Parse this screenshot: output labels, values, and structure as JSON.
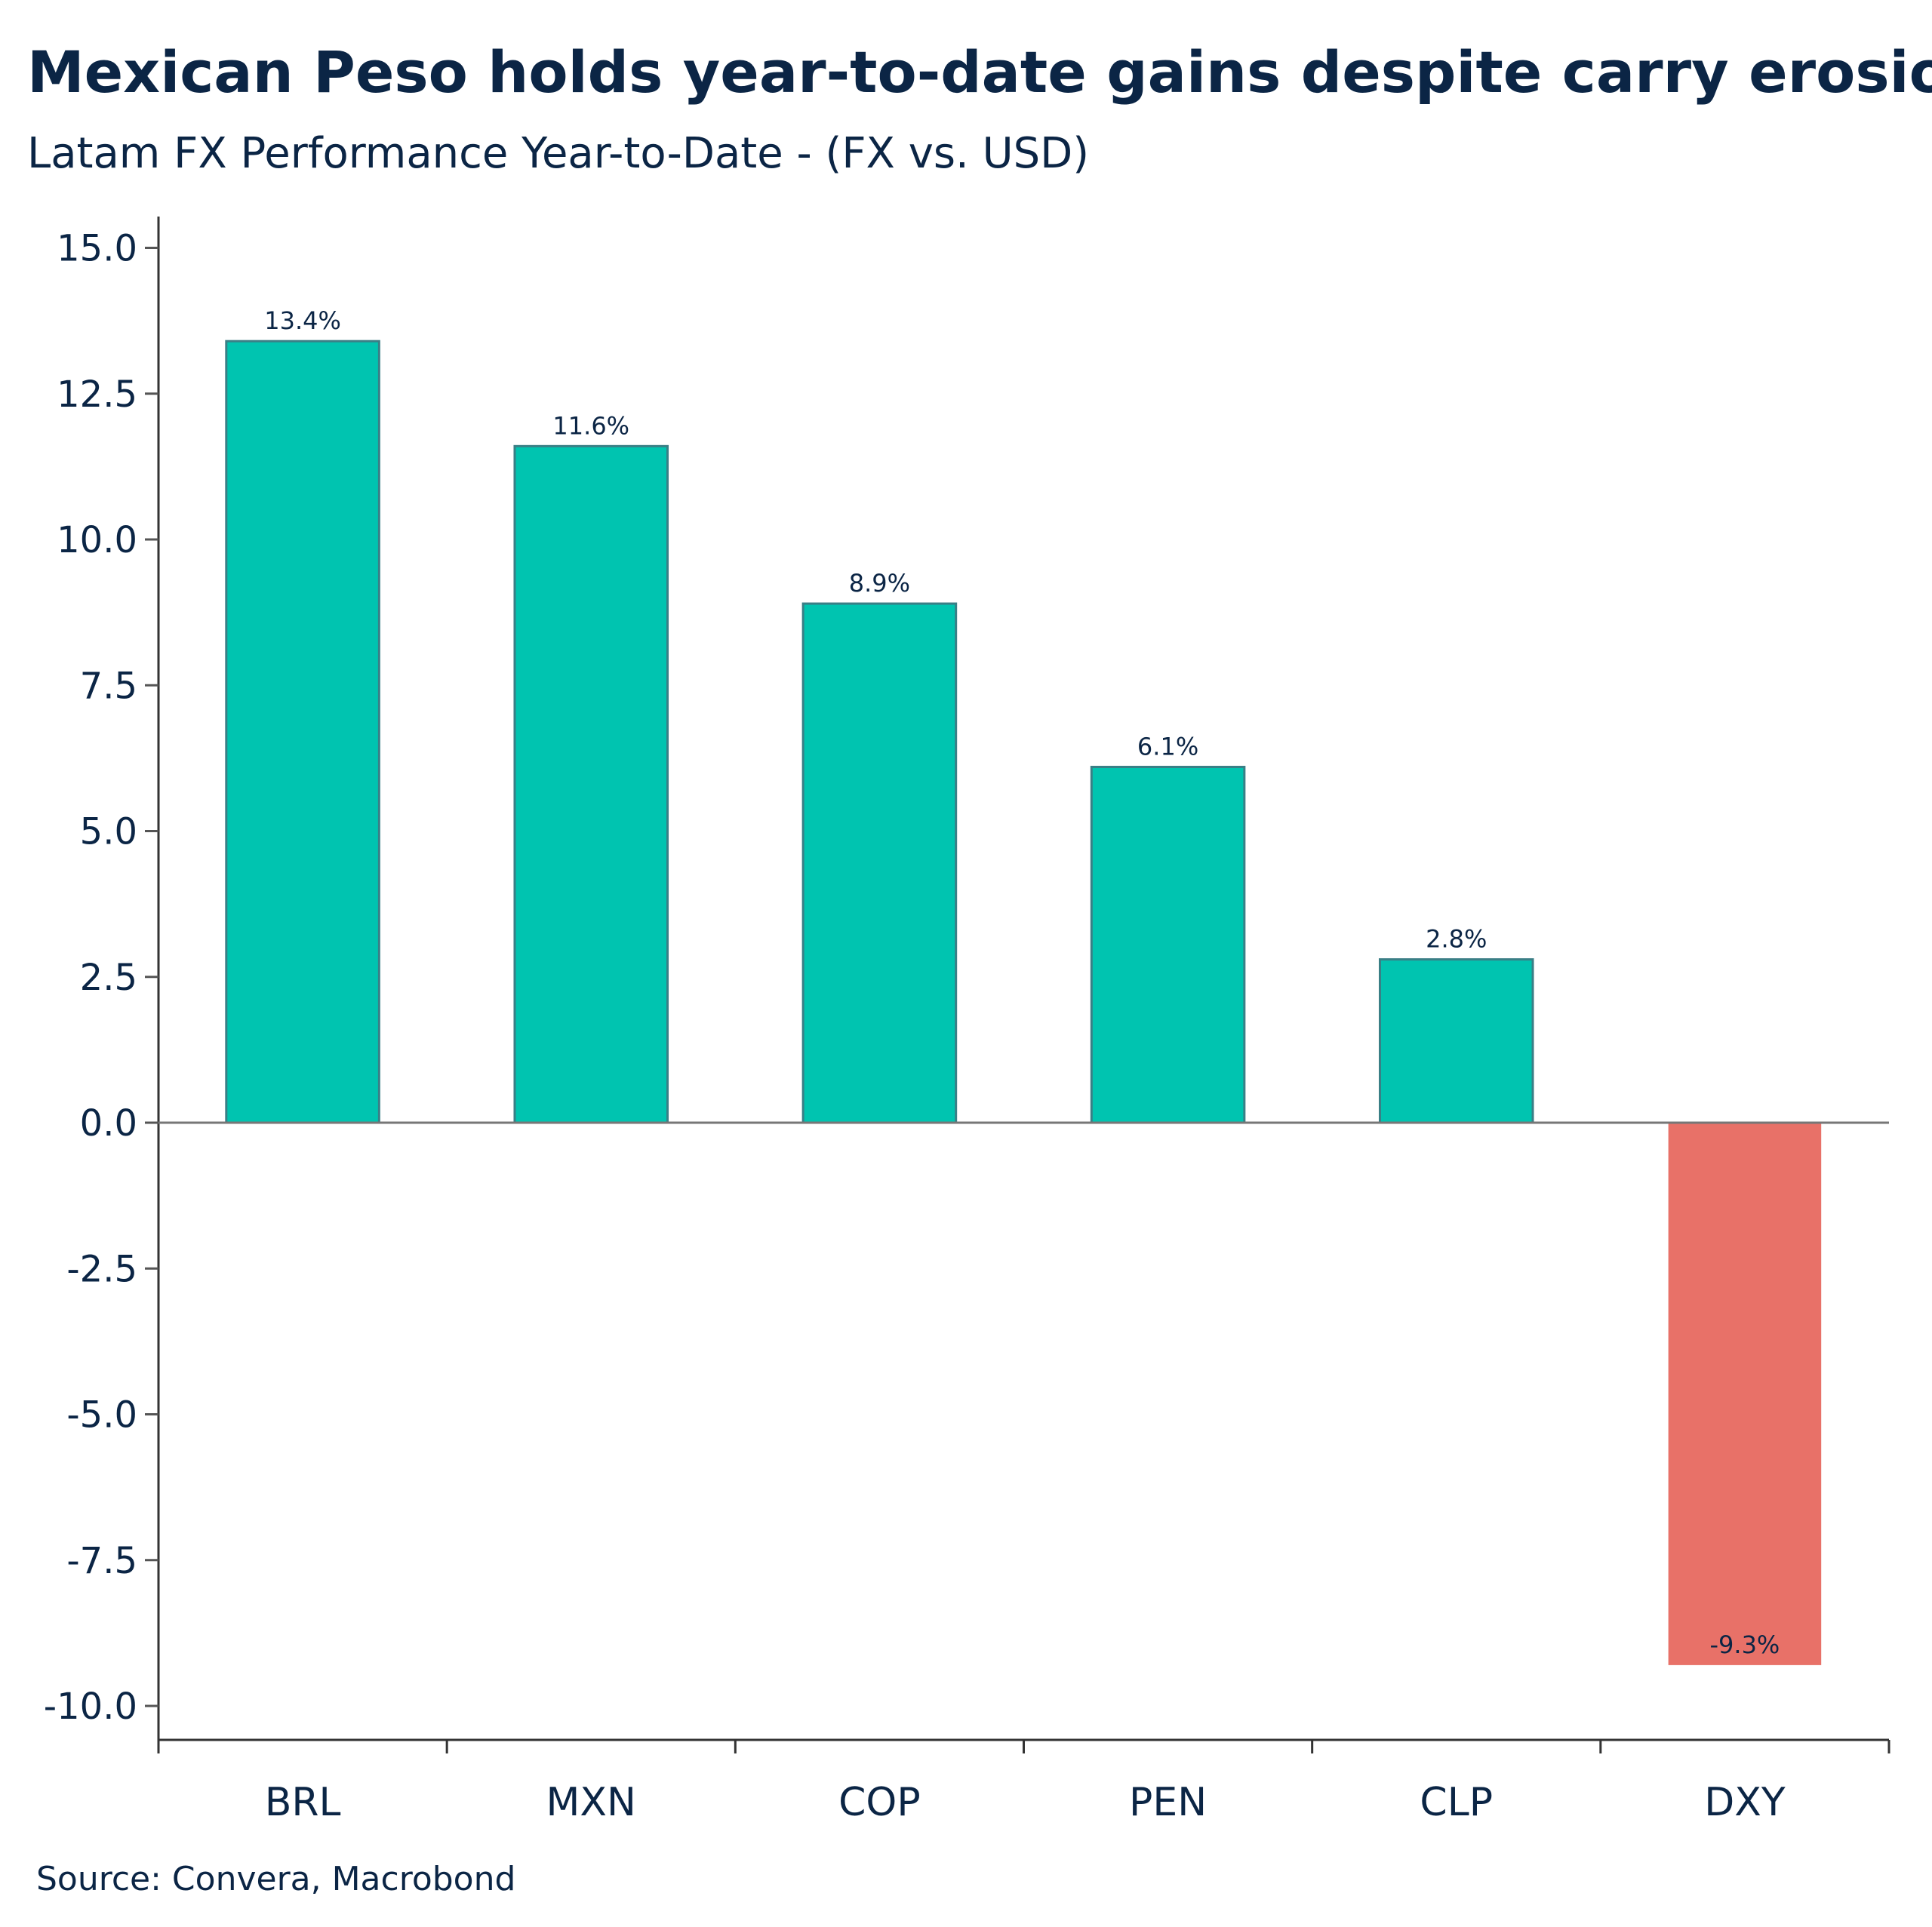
{
  "chart_data": {
    "type": "bar",
    "title": "Mexican Peso holds year-to-date gains despite carry erosion",
    "subtitle": "Latam FX Performance Year-to-Date - (FX vs. USD)",
    "source": "Source: Convera, Macrobond",
    "categories": [
      "BRL",
      "MXN",
      "COP",
      "PEN",
      "CLP",
      "DXY"
    ],
    "values": [
      13.4,
      11.6,
      8.9,
      6.1,
      2.8,
      -9.3
    ],
    "data_labels": [
      "13.4%",
      "11.6%",
      "8.9%",
      "6.1%",
      "2.8%",
      "-9.3%"
    ],
    "ylim": [
      -10.5,
      15.5
    ],
    "yticks": [
      15.0,
      12.5,
      10.0,
      7.5,
      5.0,
      2.5,
      0.0,
      -2.5,
      -5.0,
      -7.5,
      -10.0
    ],
    "ytick_labels": [
      "15.0",
      "12.5",
      "10.0",
      "7.5",
      "5.0",
      "2.5",
      "0.0",
      "-2.5",
      "-5.0",
      "-7.5",
      "-10.0"
    ],
    "xlabel": "",
    "ylabel": "",
    "grid": false,
    "colors": {
      "positive": "#00C4B0",
      "positive_edge": "#3A7F86",
      "negative": "#E87168",
      "text": "#0B2545"
    }
  }
}
